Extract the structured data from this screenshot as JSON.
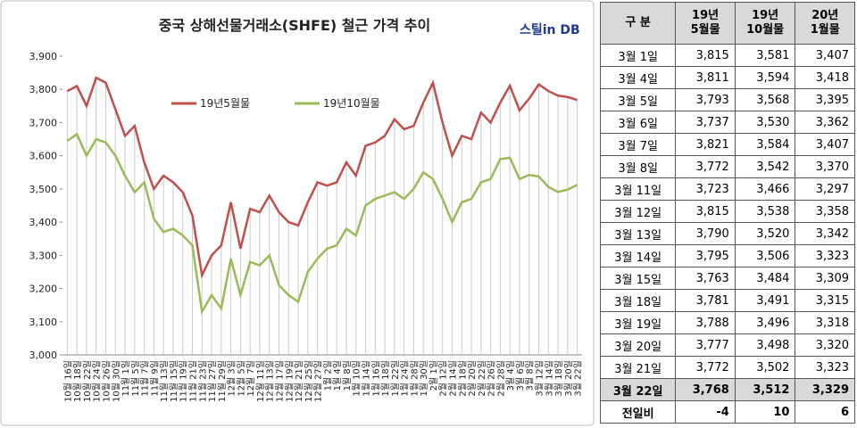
{
  "chart_data": {
    "type": "line",
    "title": "중국 상해선물거래소(SHFE) 철근 가격 추이",
    "logo": "스틸in DB",
    "categories": [
      "10월 16일",
      "10월 18일",
      "10월 22일",
      "10월 24일",
      "10월 26일",
      "10월 30일",
      "11월 1일",
      "11월 5일",
      "11월 7일",
      "11월 9일",
      "11월 13일",
      "11월 15일",
      "11월 19일",
      "11월 21일",
      "11월 23일",
      "11월 27일",
      "11월 29일",
      "12월 3일",
      "12월 5일",
      "12월 7일",
      "12월 11일",
      "12월 13일",
      "12월 17일",
      "12월 19일",
      "12월 21일",
      "12월 25일",
      "12월 27일",
      "1월 2일",
      "1월 4일",
      "1월 8일",
      "1월 10일",
      "1월 14일",
      "1월 16일",
      "1월 18일",
      "1월 22일",
      "1월 24일",
      "1월 28일",
      "1월 30일",
      "2월 1일",
      "2월 12일",
      "2월 14일",
      "2월 18일",
      "2월 20일",
      "2월 22일",
      "2월 26일",
      "2월 28일",
      "3월 4일",
      "3월 6일",
      "3월 8일",
      "3월 12일",
      "3월 14일",
      "3월 18일",
      "3월 20일",
      "3월 22일"
    ],
    "series": [
      {
        "name": "19년5월물",
        "color": "#c0504d",
        "values": [
          3795,
          3810,
          3750,
          3835,
          3820,
          3740,
          3660,
          3690,
          3580,
          3500,
          3540,
          3520,
          3490,
          3420,
          3240,
          3300,
          3330,
          3460,
          3320,
          3440,
          3430,
          3480,
          3430,
          3400,
          3390,
          3460,
          3520,
          3510,
          3520,
          3580,
          3540,
          3630,
          3640,
          3660,
          3710,
          3680,
          3690,
          3760,
          3820,
          3700,
          3600,
          3660,
          3650,
          3730,
          3700,
          3760,
          3811,
          3737,
          3772,
          3815,
          3795,
          3781,
          3777,
          3768
        ]
      },
      {
        "name": "19년10월물",
        "color": "#9bbb59",
        "values": [
          3645,
          3665,
          3600,
          3650,
          3640,
          3600,
          3540,
          3490,
          3520,
          3410,
          3370,
          3380,
          3360,
          3330,
          3130,
          3180,
          3140,
          3290,
          3180,
          3280,
          3270,
          3300,
          3210,
          3180,
          3160,
          3250,
          3290,
          3320,
          3330,
          3380,
          3360,
          3450,
          3470,
          3480,
          3490,
          3470,
          3500,
          3550,
          3530,
          3470,
          3400,
          3460,
          3470,
          3520,
          3530,
          3590,
          3594,
          3530,
          3542,
          3538,
          3506,
          3491,
          3498,
          3512
        ]
      }
    ],
    "ylim": [
      3000,
      3900
    ],
    "yticks": [
      {
        "value": 3000,
        "label": "3,000"
      },
      {
        "value": 3100,
        "label": "3,100"
      },
      {
        "value": 3200,
        "label": "3,200"
      },
      {
        "value": 3300,
        "label": "3,300"
      },
      {
        "value": 3400,
        "label": "3,400"
      },
      {
        "value": 3500,
        "label": "3,500"
      },
      {
        "value": 3600,
        "label": "3,600"
      },
      {
        "value": 3700,
        "label": "3,700"
      },
      {
        "value": 3800,
        "label": "3,800"
      },
      {
        "value": 3900,
        "label": "3,900"
      }
    ],
    "drop_lines": true
  },
  "table": {
    "header": [
      [
        "구 분"
      ],
      [
        "19년",
        "5월물"
      ],
      [
        "19년",
        "10월물"
      ],
      [
        "20년",
        "1월물"
      ]
    ],
    "rows": [
      [
        "3월 1일",
        "3,815",
        "3,581",
        "3,407"
      ],
      [
        "3월 4일",
        "3,811",
        "3,594",
        "3,418"
      ],
      [
        "3월 5일",
        "3,793",
        "3,568",
        "3,395"
      ],
      [
        "3월 6일",
        "3,737",
        "3,530",
        "3,362"
      ],
      [
        "3월 7일",
        "3,821",
        "3,584",
        "3,407"
      ],
      [
        "3월 8일",
        "3,772",
        "3,542",
        "3,370"
      ],
      [
        "3월 11일",
        "3,723",
        "3,466",
        "3,297"
      ],
      [
        "3월 12일",
        "3,815",
        "3,538",
        "3,358"
      ],
      [
        "3월 13일",
        "3,790",
        "3,520",
        "3,342"
      ],
      [
        "3월 14일",
        "3,795",
        "3,506",
        "3,323"
      ],
      [
        "3월 15일",
        "3,763",
        "3,484",
        "3,309"
      ],
      [
        "3월 18일",
        "3,781",
        "3,491",
        "3,315"
      ],
      [
        "3월 19일",
        "3,788",
        "3,496",
        "3,318"
      ],
      [
        "3월 20일",
        "3,777",
        "3,498",
        "3,320"
      ],
      [
        "3월 21일",
        "3,772",
        "3,502",
        "3,323"
      ]
    ],
    "latest": [
      "3월 22일",
      "3,768",
      "3,512",
      "3,329"
    ],
    "change": [
      "전일비",
      "-4",
      "10",
      "6"
    ]
  }
}
